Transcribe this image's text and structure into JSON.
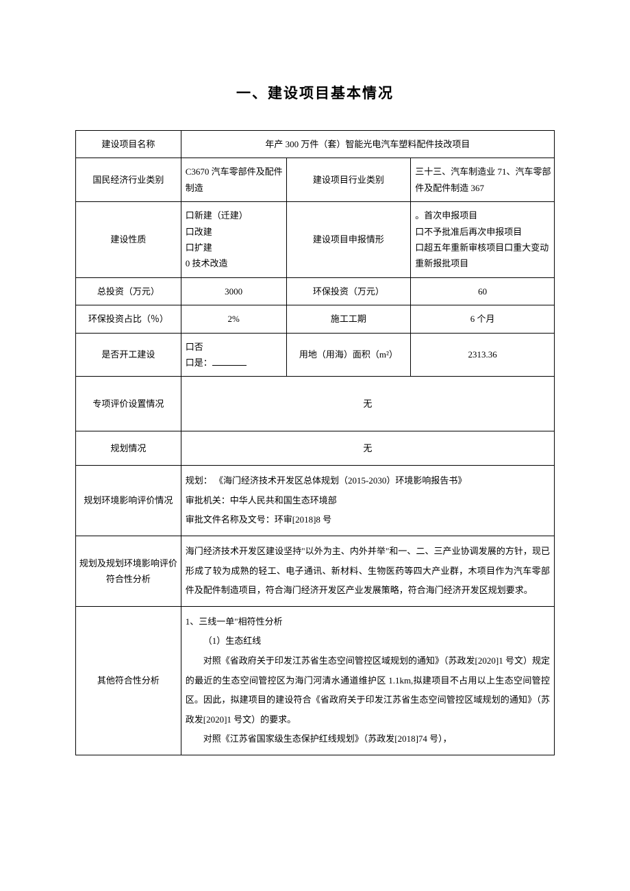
{
  "title": "一、建设项目基本情况",
  "rows": {
    "project_name_label": "建设项目名称",
    "project_name_value": "年产 300 万件（套）智能光电汽车塑料配件技改项目",
    "economy_type_label": "国民经济行业类别",
    "economy_type_value": "C3670 汽车零部件及配件制造",
    "project_industry_label": "建设项目行业类别",
    "project_industry_value": "三十三、汽车制造业 71、汽车零部件及配件制造 367",
    "construction_nature_label": "建设性质",
    "construction_nature_options": "口新建（迁建）\n口改建\n口扩建\n0 技术改造",
    "declare_type_label": "建设项目申报情形",
    "declare_type_value": "。首次申报项目\n口不予批准后再次申报项目\n口超五年重新审核项目口重大变动重新报批项目",
    "total_invest_label": "总投资（万元）",
    "total_invest_value": "3000",
    "env_invest_label": "环保投资（万元）",
    "env_invest_value": "60",
    "env_ratio_label": "环保投资占比（％）",
    "env_ratio_value": "2%",
    "construction_period_label": "施工工期",
    "construction_period_value": "6 个月",
    "started_label": "是否开工建设",
    "started_no": "口否",
    "started_yes": "口是：",
    "land_area_label": "用地（用海）面积（m²）",
    "land_area_value": "2313.36",
    "special_eval_label": "专项评价设置情况",
    "special_eval_value": "无",
    "planning_label": "规划情况",
    "planning_value": "无",
    "planning_env_label": "规划环境影响评价情况",
    "planning_env_line1": "规划：  《海门经济技术开发区总体规划（2015-2030）环境影响报告书》",
    "planning_env_line2": "审批机关：中华人民共和国生态环境部",
    "planning_env_line3": "审批文件名称及文号：环审[2018]8 号",
    "conformity_label": "规划及规划环境影响评价符合性分析",
    "conformity_value": "海门经济技术开发区建设坚持\"以外为主、内外并举\"和一、二、三产业协调发展的方针，现已形成了较为成熟的轻工、电子通讯、新材料、生物医药等四大产业群，木项目作为汽车零部件及配件制造项目，符合海门经济开发区产业发展策略，符合海门经济开发区规划要求。",
    "other_conformity_label": "其他符合性分析",
    "other_section_title": "1、三线一单\"相符性分析",
    "other_subsection": "（1）生态红线",
    "other_para1": "对照《省政府关于印发江苏省生态空间管控区域规划的通知》（苏政发[2020]1 号文）规定的最近的生态空间管控区为海门河清水通道维护区 1.1km,拟建项目不占用以上生态空间管控区。因此，拟建项目的建设符合《省政府关于印发江苏省生态空间管控区域规划的通知》（苏政发[2020]1 号文）的要求。",
    "other_para2": "对照《江苏省国家级生态保护红线规划》（苏政发[2018]74 号），"
  },
  "styles": {
    "font_size_title": 21,
    "font_size_body": 13,
    "border_color": "#000000",
    "background_color": "#ffffff",
    "text_color": "#000000"
  }
}
